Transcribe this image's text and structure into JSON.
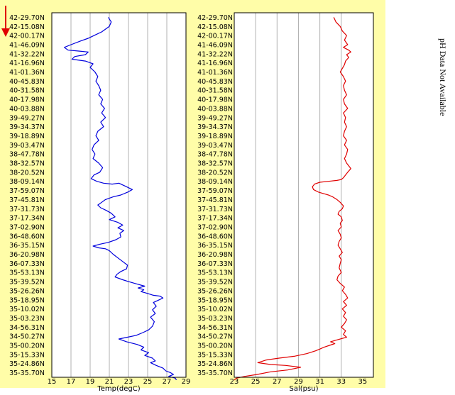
{
  "side_note": "pH Data Not Available",
  "colors": {
    "panel_bg": "#FFFDA8",
    "plot_bg": "#FFFFFF",
    "grid": "#B0B0B0",
    "temp_line": "#0000DD",
    "sal_line": "#E00000",
    "arrow": "#E00000"
  },
  "chart_data": [
    {
      "type": "line",
      "xlabel": "Temp(degC)",
      "xlim": [
        15,
        29
      ],
      "xticks": [
        "15",
        "17",
        "19",
        "21",
        "23",
        "25",
        "27",
        "29"
      ],
      "yticks": [
        "42-29.70N",
        "42-15.08N",
        "42-00.17N",
        "41-46.09N",
        "41-32.22N",
        "41-16.96N",
        "41-01.36N",
        "40-45.83N",
        "40-31.58N",
        "40-17.98N",
        "40-03.88N",
        "39-49.27N",
        "39-34.37N",
        "39-18.89N",
        "39-03.47N",
        "38-47.78N",
        "38-32.57N",
        "38-20.52N",
        "38-09.14N",
        "37-59.07N",
        "37-45.81N",
        "37-31.73N",
        "37-17.34N",
        "37-02.90N",
        "36-48.60N",
        "36-35.15N",
        "36-20.98N",
        "36-07.33N",
        "35-53.13N",
        "35-39.52N",
        "35-26.26N",
        "35-18.95N",
        "35-10.02N",
        "35-03.23N",
        "34-56.31N",
        "34-50.27N",
        "35-00.20N",
        "35-15.33N",
        "35-24.86N",
        "35-35.70N"
      ],
      "series": [
        {
          "values": [
            [
              20.9,
              0
            ],
            [
              21.2,
              0.5
            ],
            [
              21.0,
              1.0
            ],
            [
              20.6,
              1.3
            ],
            [
              20.2,
              1.6
            ],
            [
              19.6,
              1.9
            ],
            [
              19.2,
              2.1
            ],
            [
              18.8,
              2.3
            ],
            [
              18.0,
              2.6
            ],
            [
              17.0,
              3.0
            ],
            [
              16.3,
              3.3
            ],
            [
              16.7,
              3.6
            ],
            [
              17.8,
              3.7
            ],
            [
              18.8,
              3.8
            ],
            [
              18.5,
              4.1
            ],
            [
              17.4,
              4.3
            ],
            [
              17.1,
              4.6
            ],
            [
              18.5,
              4.8
            ],
            [
              19.3,
              5.1
            ],
            [
              19.0,
              5.5
            ],
            [
              19.5,
              6.0
            ],
            [
              19.8,
              6.5
            ],
            [
              19.6,
              7.0
            ],
            [
              19.9,
              7.5
            ],
            [
              20.1,
              8.0
            ],
            [
              19.9,
              8.5
            ],
            [
              20.3,
              9.0
            ],
            [
              20.1,
              9.5
            ],
            [
              20.5,
              10.0
            ],
            [
              20.2,
              10.5
            ],
            [
              20.6,
              11.0
            ],
            [
              20.1,
              11.5
            ],
            [
              20.4,
              12.0
            ],
            [
              19.8,
              12.5
            ],
            [
              19.6,
              13.0
            ],
            [
              19.9,
              13.5
            ],
            [
              19.4,
              14.0
            ],
            [
              19.2,
              14.5
            ],
            [
              19.5,
              15.0
            ],
            [
              19.3,
              15.5
            ],
            [
              19.9,
              16.0
            ],
            [
              20.3,
              16.5
            ],
            [
              20.0,
              17.0
            ],
            [
              19.4,
              17.3
            ],
            [
              19.1,
              17.7
            ],
            [
              19.7,
              18.0
            ],
            [
              20.4,
              18.2
            ],
            [
              21.3,
              18.3
            ],
            [
              22.0,
              18.2
            ],
            [
              22.6,
              18.5
            ],
            [
              23.4,
              18.9
            ],
            [
              22.9,
              19.2
            ],
            [
              22.2,
              19.5
            ],
            [
              21.4,
              19.7
            ],
            [
              20.6,
              20.0
            ],
            [
              20.2,
              20.3
            ],
            [
              19.8,
              20.6
            ],
            [
              20.1,
              20.9
            ],
            [
              20.7,
              21.2
            ],
            [
              21.2,
              21.5
            ],
            [
              21.6,
              21.9
            ],
            [
              21.0,
              22.2
            ],
            [
              21.9,
              22.5
            ],
            [
              22.4,
              22.8
            ],
            [
              21.9,
              23.1
            ],
            [
              22.5,
              23.4
            ],
            [
              22.1,
              23.7
            ],
            [
              22.2,
              24.1
            ],
            [
              21.7,
              24.4
            ],
            [
              20.9,
              24.7
            ],
            [
              20.0,
              24.9
            ],
            [
              19.3,
              25.1
            ],
            [
              19.9,
              25.3
            ],
            [
              20.6,
              25.4
            ],
            [
              21.0,
              25.6
            ],
            [
              21.4,
              26.0
            ],
            [
              21.9,
              26.4
            ],
            [
              22.4,
              26.8
            ],
            [
              22.9,
              27.2
            ],
            [
              22.8,
              27.6
            ],
            [
              22.2,
              27.9
            ],
            [
              21.8,
              28.2
            ],
            [
              21.6,
              28.5
            ],
            [
              22.4,
              28.8
            ],
            [
              23.0,
              29.0
            ],
            [
              24.0,
              29.3
            ],
            [
              24.7,
              29.5
            ],
            [
              24.0,
              29.7
            ],
            [
              24.6,
              29.9
            ],
            [
              24.3,
              30.1
            ],
            [
              25.0,
              30.3
            ],
            [
              25.6,
              30.5
            ],
            [
              26.3,
              30.6
            ],
            [
              26.6,
              30.8
            ],
            [
              26.2,
              31.0
            ],
            [
              25.6,
              31.3
            ],
            [
              25.9,
              31.7
            ],
            [
              25.5,
              32.1
            ],
            [
              25.8,
              32.5
            ],
            [
              25.3,
              32.9
            ],
            [
              25.7,
              33.4
            ],
            [
              25.5,
              33.9
            ],
            [
              25.1,
              34.3
            ],
            [
              24.5,
              34.6
            ],
            [
              23.8,
              34.9
            ],
            [
              22.9,
              35.1
            ],
            [
              22.0,
              35.3
            ],
            [
              22.8,
              35.6
            ],
            [
              23.9,
              35.9
            ],
            [
              24.6,
              36.2
            ],
            [
              24.3,
              36.5
            ],
            [
              25.1,
              36.8
            ],
            [
              24.7,
              37.1
            ],
            [
              25.5,
              37.4
            ],
            [
              25.8,
              37.7
            ],
            [
              25.3,
              37.9
            ],
            [
              25.9,
              38.2
            ],
            [
              26.6,
              38.5
            ],
            [
              26.9,
              38.8
            ],
            [
              27.4,
              39.0
            ],
            [
              27.7,
              39.2
            ],
            [
              27.2,
              39.4
            ],
            [
              27.9,
              39.6
            ],
            [
              28.0,
              39.8
            ]
          ]
        }
      ]
    },
    {
      "type": "line",
      "xlabel": "Sal(psu)",
      "xlim": [
        23,
        36
      ],
      "xticks": [
        "23",
        "25",
        "27",
        "29",
        "31",
        "33",
        "35"
      ],
      "yticks": [
        "42-29.70N",
        "42-15.08N",
        "42-00.17N",
        "41-46.09N",
        "41-32.22N",
        "41-16.96N",
        "41-01.36N",
        "40-45.83N",
        "40-31.58N",
        "40-17.98N",
        "40-03.88N",
        "39-49.27N",
        "39-34.37N",
        "39-18.89N",
        "39-03.47N",
        "38-47.78N",
        "38-32.57N",
        "38-20.52N",
        "38-09.14N",
        "37-59.07N",
        "37-45.81N",
        "37-31.73N",
        "37-17.34N",
        "37-02.90N",
        "36-48.60N",
        "36-35.15N",
        "36-20.98N",
        "36-07.33N",
        "35-53.13N",
        "35-39.52N",
        "35-26.26N",
        "35-18.95N",
        "35-10.02N",
        "35-03.23N",
        "34-56.31N",
        "34-50.27N",
        "35-00.20N",
        "35-15.33N",
        "35-24.86N",
        "35-35.70N"
      ],
      "series": [
        {
          "values": [
            [
              32.3,
              0
            ],
            [
              32.5,
              0.5
            ],
            [
              32.9,
              1.0
            ],
            [
              33.1,
              1.5
            ],
            [
              33.5,
              2.0
            ],
            [
              33.3,
              2.5
            ],
            [
              33.6,
              3.0
            ],
            [
              33.2,
              3.3
            ],
            [
              33.7,
              3.6
            ],
            [
              33.9,
              3.8
            ],
            [
              33.5,
              4.1
            ],
            [
              33.7,
              4.4
            ],
            [
              33.4,
              4.8
            ],
            [
              33.3,
              5.2
            ],
            [
              33.1,
              5.6
            ],
            [
              32.9,
              6.0
            ],
            [
              33.2,
              6.5
            ],
            [
              33.4,
              7.0
            ],
            [
              33.2,
              7.5
            ],
            [
              33.3,
              8.0
            ],
            [
              33.5,
              8.5
            ],
            [
              33.2,
              9.0
            ],
            [
              33.3,
              9.5
            ],
            [
              33.6,
              10.0
            ],
            [
              33.2,
              10.5
            ],
            [
              33.4,
              11.0
            ],
            [
              33.3,
              11.5
            ],
            [
              33.5,
              12.0
            ],
            [
              33.3,
              12.5
            ],
            [
              33.2,
              13.0
            ],
            [
              33.5,
              13.5
            ],
            [
              33.3,
              14.0
            ],
            [
              33.6,
              14.5
            ],
            [
              33.5,
              15.0
            ],
            [
              33.3,
              15.5
            ],
            [
              33.5,
              16.0
            ],
            [
              33.7,
              16.3
            ],
            [
              33.9,
              16.6
            ],
            [
              33.6,
              17.0
            ],
            [
              33.4,
              17.3
            ],
            [
              33.2,
              17.6
            ],
            [
              33.0,
              17.8
            ],
            [
              32.6,
              17.9
            ],
            [
              31.8,
              18.0
            ],
            [
              31.0,
              18.1
            ],
            [
              30.5,
              18.3
            ],
            [
              30.3,
              18.6
            ],
            [
              30.4,
              18.9
            ],
            [
              30.9,
              19.2
            ],
            [
              31.5,
              19.4
            ],
            [
              31.8,
              19.5
            ],
            [
              32.2,
              19.7
            ],
            [
              32.6,
              20.0
            ],
            [
              32.9,
              20.3
            ],
            [
              33.2,
              20.7
            ],
            [
              33.1,
              21.0
            ],
            [
              32.8,
              21.3
            ],
            [
              32.7,
              21.6
            ],
            [
              33.0,
              21.9
            ],
            [
              33.1,
              22.3
            ],
            [
              32.9,
              22.6
            ],
            [
              33.0,
              23.0
            ],
            [
              32.7,
              23.4
            ],
            [
              32.9,
              23.8
            ],
            [
              33.0,
              24.2
            ],
            [
              32.8,
              24.6
            ],
            [
              32.7,
              25.0
            ],
            [
              32.9,
              25.4
            ],
            [
              33.1,
              25.8
            ],
            [
              32.8,
              26.2
            ],
            [
              33.0,
              26.6
            ],
            [
              32.9,
              27.0
            ],
            [
              32.8,
              27.5
            ],
            [
              33.0,
              28.0
            ],
            [
              32.7,
              28.4
            ],
            [
              32.6,
              28.8
            ],
            [
              32.9,
              29.2
            ],
            [
              33.3,
              29.6
            ],
            [
              33.1,
              30.0
            ],
            [
              33.4,
              30.4
            ],
            [
              33.6,
              30.8
            ],
            [
              33.2,
              31.2
            ],
            [
              33.5,
              31.6
            ],
            [
              33.1,
              32.0
            ],
            [
              33.4,
              32.4
            ],
            [
              33.2,
              32.8
            ],
            [
              33.5,
              33.2
            ],
            [
              33.3,
              33.6
            ],
            [
              33.0,
              34.0
            ],
            [
              33.4,
              34.4
            ],
            [
              33.2,
              34.8
            ],
            [
              33.5,
              35.1
            ],
            [
              32.6,
              35.4
            ],
            [
              32.0,
              35.6
            ],
            [
              32.4,
              35.8
            ],
            [
              31.9,
              36.0
            ],
            [
              31.4,
              36.2
            ],
            [
              31.0,
              36.4
            ],
            [
              30.6,
              36.6
            ],
            [
              29.8,
              36.9
            ],
            [
              28.6,
              37.2
            ],
            [
              27.2,
              37.4
            ],
            [
              26.0,
              37.6
            ],
            [
              25.2,
              37.9
            ],
            [
              26.4,
              38.1
            ],
            [
              27.8,
              38.2
            ],
            [
              29.2,
              38.4
            ],
            [
              28.0,
              38.7
            ],
            [
              26.4,
              38.9
            ],
            [
              25.1,
              39.2
            ],
            [
              24.0,
              39.4
            ],
            [
              23.2,
              39.6
            ],
            [
              23.0,
              39.8
            ]
          ]
        }
      ]
    }
  ]
}
